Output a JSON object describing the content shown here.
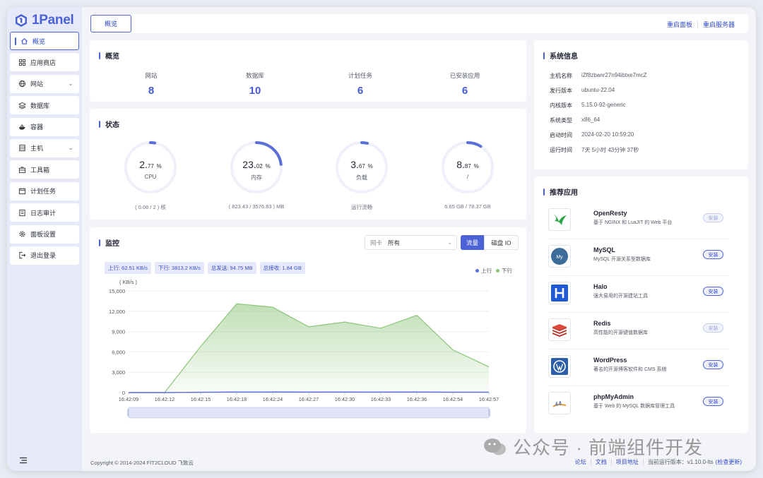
{
  "app": {
    "name": "1Panel"
  },
  "sidebar": {
    "items": [
      {
        "label": "概览",
        "icon": "home-icon",
        "active": true
      },
      {
        "label": "应用商店",
        "icon": "grid-icon"
      },
      {
        "label": "网站",
        "icon": "globe-icon",
        "expandable": true
      },
      {
        "label": "数据库",
        "icon": "layers-icon"
      },
      {
        "label": "容器",
        "icon": "docker-icon"
      },
      {
        "label": "主机",
        "icon": "server-icon",
        "expandable": true
      },
      {
        "label": "工具箱",
        "icon": "toolbox-icon"
      },
      {
        "label": "计划任务",
        "icon": "calendar-icon"
      },
      {
        "label": "日志审计",
        "icon": "document-icon"
      },
      {
        "label": "面板设置",
        "icon": "gear-icon"
      },
      {
        "label": "退出登录",
        "icon": "logout-icon"
      }
    ]
  },
  "topbar": {
    "tab": "概览",
    "restart_panel": "重启面板",
    "restart_server": "重启服务器"
  },
  "overview": {
    "title": "概览",
    "stats": [
      {
        "label": "网站",
        "value": "8"
      },
      {
        "label": "数据库",
        "value": "10"
      },
      {
        "label": "计划任务",
        "value": "6"
      },
      {
        "label": "已安装应用",
        "value": "6"
      }
    ]
  },
  "status": {
    "title": "状态",
    "gauges": [
      {
        "int": "2.",
        "dec": "77",
        "unit": "%",
        "name": "CPU",
        "footer": "( 0.06 / 2 ) 核",
        "percent": 2.77
      },
      {
        "int": "23.",
        "dec": "02",
        "unit": "%",
        "name": "内存",
        "footer": "( 823.43 / 3576.83 ) MB",
        "percent": 23.02
      },
      {
        "int": "3.",
        "dec": "67",
        "unit": "%",
        "name": "负载",
        "footer": "运行流畅",
        "percent": 3.67
      },
      {
        "int": "8.",
        "dec": "87",
        "unit": "%",
        "name": "/",
        "footer": "6.65 GB / 78.37 GB",
        "percent": 8.87
      }
    ]
  },
  "monitor": {
    "title": "监控",
    "nic_label": "网卡",
    "nic_value": "所有",
    "btn_flow": "流量",
    "btn_disk": "磁盘 IO",
    "tags": [
      "上行: 62.51 KB/s",
      "下行: 3813.2 KB/s",
      "总发送: 94.75 MB",
      "总接收: 1.84 GB"
    ],
    "legend_up": "上行",
    "legend_down": "下行",
    "color_up": "#5b6fd8",
    "color_down": "#8cc57a"
  },
  "chart_data": {
    "type": "area",
    "ylabel": "( KB/s )",
    "ylim": [
      0,
      15000
    ],
    "yticks": [
      "15,000",
      "12,000",
      "9,000",
      "6,000",
      "3,000",
      "0"
    ],
    "ytick_values": [
      15000,
      12000,
      9000,
      6000,
      3000,
      0
    ],
    "categories": [
      "16:42:09",
      "16:42:12",
      "16:42:15",
      "16:42:18",
      "16:42:24",
      "16:42:27",
      "16:42:30",
      "16:42:33",
      "16:42:36",
      "16:42:54",
      "16:42:57"
    ],
    "series": [
      {
        "name": "上行",
        "values": [
          0,
          0,
          50,
          80,
          90,
          70,
          80,
          70,
          80,
          60,
          60
        ]
      },
      {
        "name": "下行",
        "values": [
          0,
          0,
          6800,
          13100,
          12600,
          9700,
          10400,
          9500,
          11400,
          6300,
          3800
        ]
      }
    ]
  },
  "sysinfo": {
    "title": "系统信息",
    "rows": [
      {
        "key": "主机名称",
        "value": "iZf8zbanr27n94ibtxe7mcZ"
      },
      {
        "key": "发行版本",
        "value": "ubuntu-22.04"
      },
      {
        "key": "内核版本",
        "value": "5.15.0-92-generic"
      },
      {
        "key": "系统类型",
        "value": "x86_64"
      },
      {
        "key": "启动时间",
        "value": "2024-02-20 10:59:20"
      },
      {
        "key": "运行时间",
        "value": "7天 5小时 43分钟 37秒"
      }
    ]
  },
  "apps": {
    "title": "推荐应用",
    "items": [
      {
        "name": "OpenResty",
        "desc": "基于 NGINX 和 LuaJIT 的 Web 平台",
        "btn": "安装",
        "installed": true,
        "icon": "openresty-icon"
      },
      {
        "name": "MySQL",
        "desc": "MySQL 开源关系型数据库",
        "btn": "安装",
        "installed": false,
        "icon": "mysql-icon"
      },
      {
        "name": "Halo",
        "desc": "强大易用的开源建站工具",
        "btn": "安装",
        "installed": false,
        "icon": "halo-icon"
      },
      {
        "name": "Redis",
        "desc": "高性能的开源键值数据库",
        "btn": "安装",
        "installed": true,
        "icon": "redis-icon"
      },
      {
        "name": "WordPress",
        "desc": "著名的开源博客软件和 CMS 系统",
        "btn": "安装",
        "installed": false,
        "icon": "wordpress-icon"
      },
      {
        "name": "phpMyAdmin",
        "desc": "基于 Web 的 MySQL 数据库管理工具",
        "btn": "安装",
        "installed": false,
        "icon": "phpmyadmin-icon"
      }
    ]
  },
  "footer": {
    "copyright": "Copyright © 2014-2024 FIT2CLOUD 飞致云",
    "links": [
      "论坛",
      "文档",
      "项目地址"
    ],
    "version_label": "当前运行版本：v1.10.0-lts",
    "check_update": "(检查更新)"
  },
  "watermark": {
    "text": "公众号 · 前端组件开发"
  }
}
